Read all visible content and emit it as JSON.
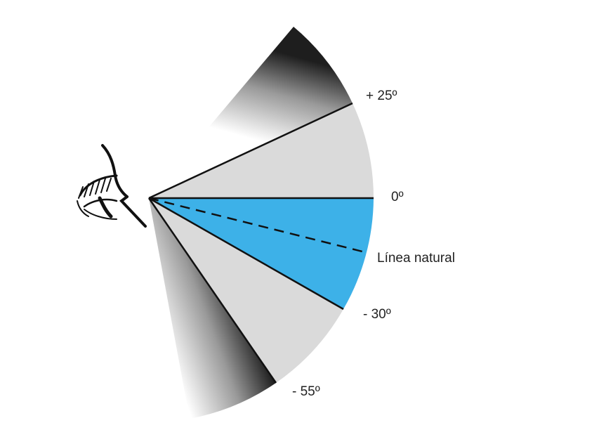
{
  "labels": {
    "plus_25": "+ 25º",
    "zero": "0º",
    "natural_line": "Línea natural",
    "minus_30": "- 30º",
    "minus_55": "- 55º"
  },
  "colors": {
    "optimal_zone": "#3db1e8",
    "acceptable_zone": "#dadada",
    "outline": "#111111"
  },
  "icons": [
    "eye-icon"
  ]
}
